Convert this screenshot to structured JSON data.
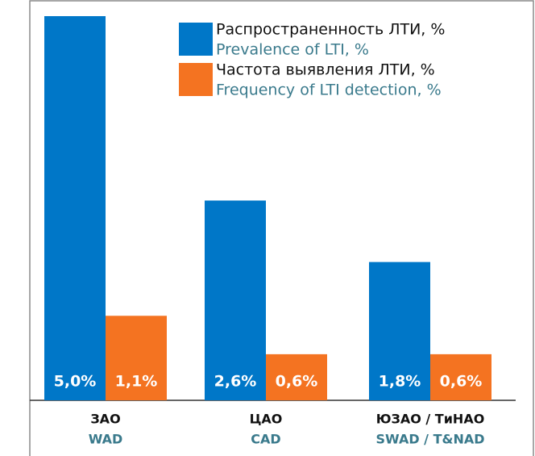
{
  "chart_data": {
    "type": "bar",
    "categories": [
      "ЗАО",
      "ЦАО",
      "ЮЗАО / ТиНАО"
    ],
    "category_translations": [
      "WAD",
      "CAD",
      "SWAD / T&NAD"
    ],
    "series": [
      {
        "name": "Распространенность ЛТИ, %",
        "name_translation": "Prevalence of LTI, %",
        "color": "#0077c8",
        "values": [
          5.0,
          2.6,
          1.8
        ],
        "value_labels": [
          "5,0%",
          "2,6%",
          "1,8%"
        ]
      },
      {
        "name": "Частота выявления ЛТИ, %",
        "name_translation": "Frequency of LTI detection, %",
        "color": "#f47321",
        "values": [
          1.1,
          0.6,
          0.6
        ],
        "value_labels": [
          "1,1%",
          "0,6%",
          "0,6%"
        ]
      }
    ],
    "legend": "top-right"
  }
}
